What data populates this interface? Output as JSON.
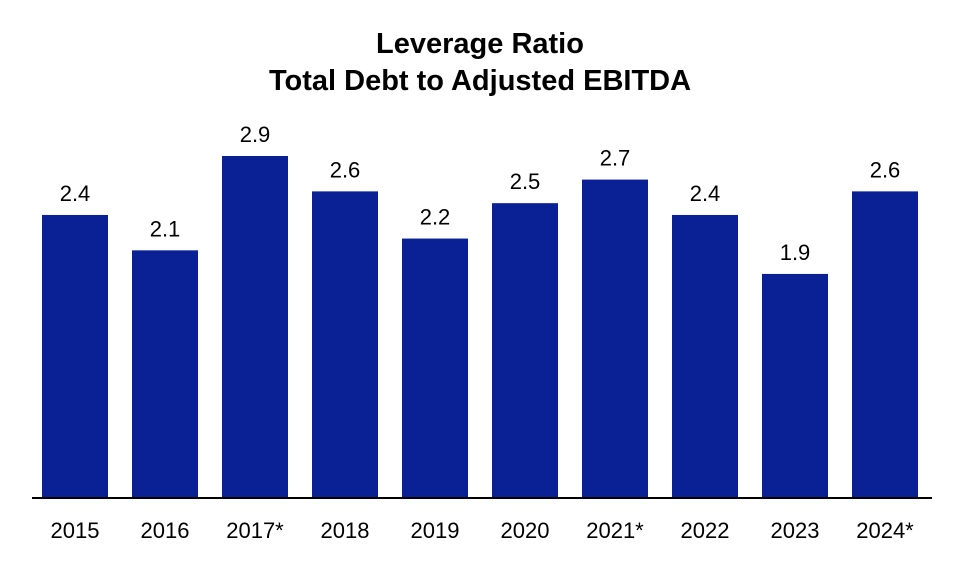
{
  "chart_data": {
    "type": "bar",
    "title": "Leverage Ratio",
    "subtitle": "Total Debt to Adjusted EBITDA",
    "xlabel": "",
    "ylabel": "",
    "categories": [
      "2015",
      "2016",
      "2017*",
      "2018",
      "2019",
      "2020",
      "2021*",
      "2022",
      "2023",
      "2024*"
    ],
    "values": [
      2.4,
      2.1,
      2.9,
      2.6,
      2.2,
      2.5,
      2.7,
      2.4,
      1.9,
      2.6
    ],
    "value_labels": [
      "2.4",
      "2.1",
      "2.9",
      "2.6",
      "2.2",
      "2.5",
      "2.7",
      "2.4",
      "1.9",
      "2.6"
    ],
    "ylim": [
      0,
      2.9
    ],
    "grid": false,
    "legend": "none",
    "bar_color": "#0a2196",
    "axis_color": "#000000"
  }
}
